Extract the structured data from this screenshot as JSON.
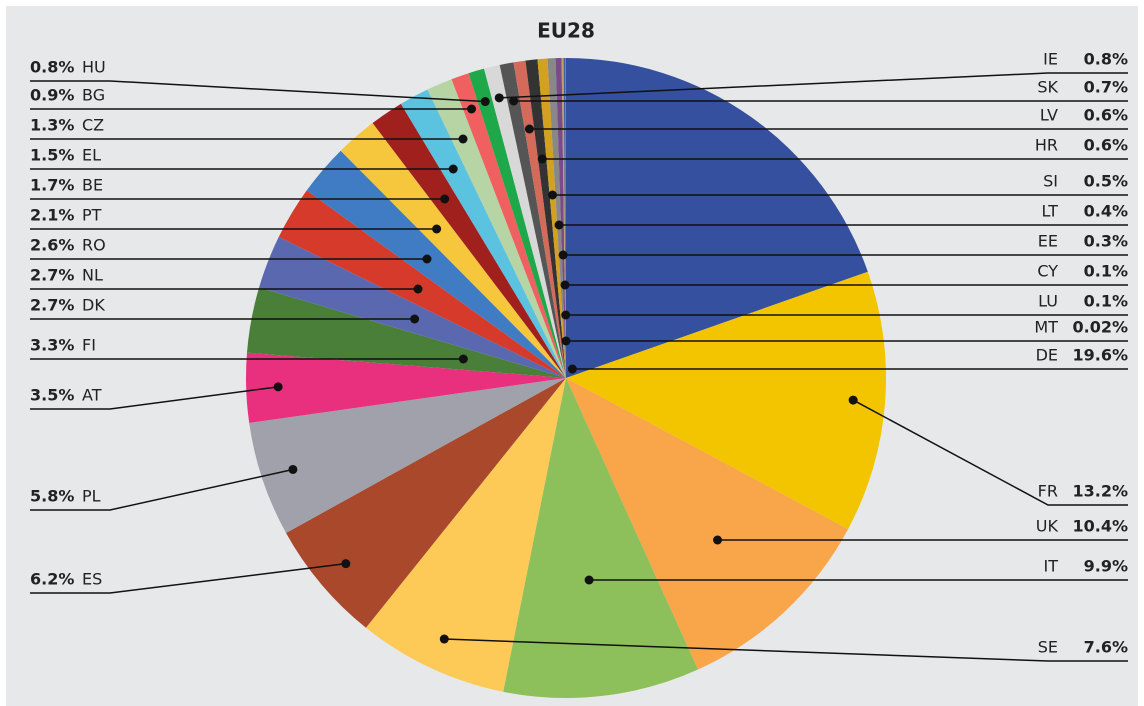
{
  "chart_data": {
    "type": "pie",
    "title": "EU28",
    "categories": [
      "DE",
      "FR",
      "UK",
      "IT",
      "SE",
      "ES",
      "PL",
      "AT",
      "FI",
      "DK",
      "NL",
      "RO",
      "PT",
      "BE",
      "EL",
      "CZ",
      "BG",
      "HU",
      "IE",
      "SK",
      "LV",
      "HR",
      "SI",
      "LT",
      "EE",
      "CY",
      "LU",
      "MT"
    ],
    "values": [
      19.6,
      13.2,
      10.4,
      9.9,
      7.6,
      6.2,
      5.8,
      3.5,
      3.3,
      2.7,
      2.7,
      2.6,
      2.1,
      1.7,
      1.5,
      1.3,
      0.9,
      0.8,
      0.8,
      0.7,
      0.6,
      0.6,
      0.5,
      0.4,
      0.3,
      0.1,
      0.1,
      0.02
    ],
    "value_labels": [
      "19.6%",
      "13.2%",
      "10.4%",
      "9.9%",
      "7.6%",
      "6.2%",
      "5.8%",
      "3.5%",
      "3.3%",
      "2.7%",
      "2.7%",
      "2.6%",
      "2.1%",
      "1.7%",
      "1.5%",
      "1.3%",
      "0.9%",
      "0.8%",
      "0.8%",
      "0.7%",
      "0.6%",
      "0.6%",
      "0.5%",
      "0.4%",
      "0.3%",
      "0.1%",
      "0.1%",
      "0.02%"
    ],
    "colors": [
      "#34509f",
      "#f2c500",
      "#f9a54a",
      "#8dc05a",
      "#fdc957",
      "#a9482a",
      "#a0a1ab",
      "#e8307e",
      "#4a7f3a",
      "#5a68b0",
      "#d63a2a",
      "#3f7cc4",
      "#f6c63d",
      "#a0201e",
      "#5bc2e0",
      "#b6d4a4",
      "#f06060",
      "#1fa84a",
      "#d8d8d8",
      "#555555",
      "#d46a5a",
      "#333333",
      "#d4a020",
      "#888888",
      "#7a4a8a",
      "#c0a060",
      "#4060a0",
      "#999999"
    ]
  }
}
